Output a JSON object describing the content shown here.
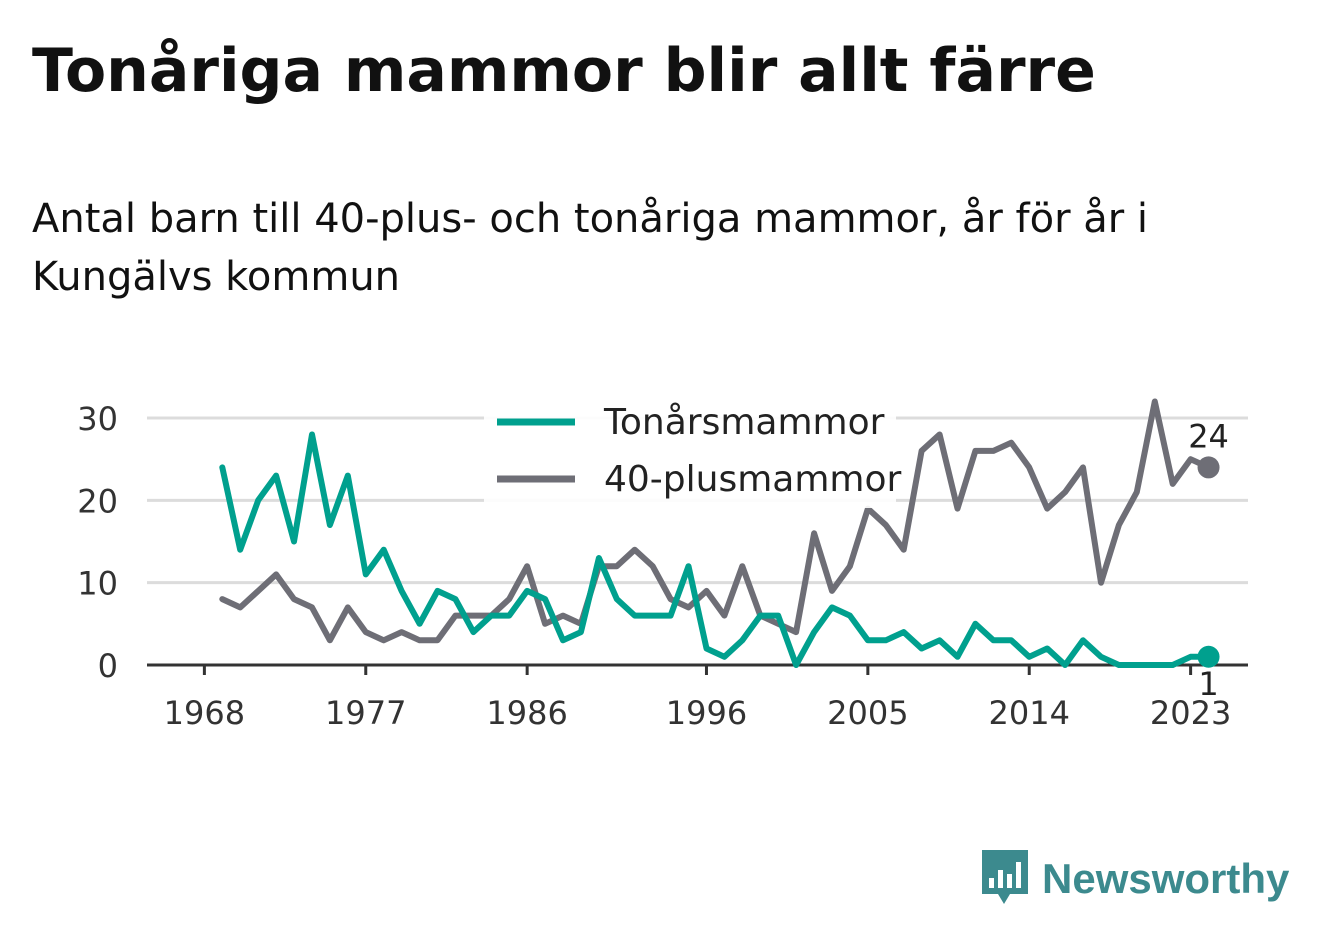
{
  "header": {
    "title": "Tonåriga mammor blir allt färre",
    "subtitle": "Antal barn till 40-plus- och tonåriga mammor, år för år i Kungälvs kommun"
  },
  "brand": {
    "name": "Newsworthy",
    "icon": "bar-chart-speech-bubble-icon",
    "color": "#3c8a8e"
  },
  "chart_data": {
    "type": "line",
    "title": "Tonåriga mammor blir allt färre",
    "subtitle": "Antal barn till 40-plus- och tonåriga mammor, år för år i Kungälvs kommun",
    "xlabel": "",
    "ylabel": "",
    "xlim": [
      1967,
      2026
    ],
    "ylim": [
      0,
      30
    ],
    "x_ticks": [
      "1968",
      "1977",
      "1986",
      "1996",
      "2005",
      "2014",
      "2023"
    ],
    "y_ticks": [
      "0",
      "10",
      "20",
      "30"
    ],
    "grid": true,
    "legend": "top-center",
    "x": [
      1969,
      1970,
      1971,
      1972,
      1973,
      1974,
      1975,
      1976,
      1977,
      1978,
      1979,
      1980,
      1981,
      1982,
      1983,
      1984,
      1985,
      1986,
      1987,
      1988,
      1989,
      1990,
      1991,
      1992,
      1993,
      1994,
      1995,
      1996,
      1997,
      1998,
      1999,
      2000,
      2001,
      2002,
      2003,
      2004,
      2005,
      2006,
      2007,
      2008,
      2009,
      2010,
      2011,
      2012,
      2013,
      2014,
      2015,
      2016,
      2017,
      2018,
      2019,
      2020,
      2021,
      2022,
      2023,
      2024
    ],
    "series": [
      {
        "name": "Tonårsmammor",
        "color": "#00a08e",
        "values": [
          24,
          14,
          20,
          23,
          15,
          28,
          17,
          23,
          11,
          14,
          9,
          5,
          9,
          8,
          4,
          6,
          6,
          9,
          8,
          3,
          4,
          13,
          8,
          6,
          6,
          6,
          12,
          2,
          1,
          3,
          6,
          6,
          0,
          4,
          7,
          6,
          3,
          3,
          4,
          2,
          3,
          1,
          5,
          3,
          3,
          1,
          2,
          0,
          3,
          1,
          0,
          0,
          0,
          0,
          1,
          1
        ],
        "end_label": "1"
      },
      {
        "name": "40-plusmammor",
        "color": "#6e6e76",
        "values": [
          8,
          7,
          9,
          11,
          8,
          7,
          3,
          7,
          4,
          3,
          4,
          3,
          3,
          6,
          6,
          6,
          8,
          12,
          5,
          6,
          5,
          12,
          12,
          14,
          12,
          8,
          7,
          9,
          6,
          12,
          6,
          5,
          4,
          16,
          9,
          12,
          19,
          17,
          14,
          26,
          28,
          19,
          26,
          26,
          27,
          24,
          19,
          21,
          24,
          10,
          17,
          21,
          32,
          22,
          25,
          24
        ],
        "end_label": "24"
      }
    ]
  }
}
